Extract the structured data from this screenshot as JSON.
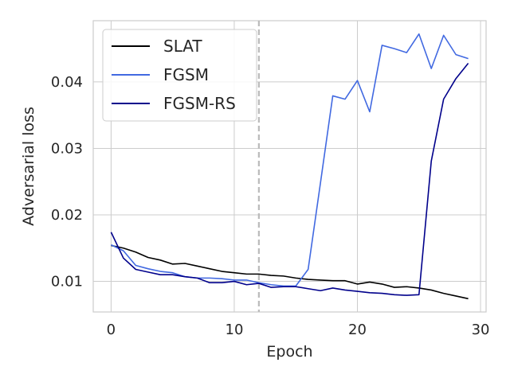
{
  "chart_data": {
    "type": "line",
    "xlabel": "Epoch",
    "ylabel": "Adversarial loss",
    "xlim": [
      -1.45,
      30.45
    ],
    "ylim": [
      0.0054,
      0.0492
    ],
    "x_ticks": [
      0,
      10,
      20,
      30
    ],
    "x_tick_labels": [
      "0",
      "10",
      "20",
      "30"
    ],
    "y_ticks": [
      0.01,
      0.02,
      0.03,
      0.04
    ],
    "y_tick_labels": [
      "0.01",
      "0.02",
      "0.03",
      "0.04"
    ],
    "grid": true,
    "legend_position": "top-left",
    "vline": {
      "x": 12,
      "style": "dashed",
      "color": "#bbbbbb"
    },
    "x": [
      0,
      1,
      2,
      3,
      4,
      5,
      6,
      7,
      8,
      9,
      10,
      11,
      12,
      13,
      14,
      15,
      16,
      17,
      18,
      19,
      20,
      21,
      22,
      23,
      24,
      25,
      26,
      27,
      28,
      29
    ],
    "series": [
      {
        "name": "SLAT",
        "color": "#000000",
        "values": [
          0.0154,
          0.015,
          0.0144,
          0.0136,
          0.0132,
          0.0126,
          0.0127,
          0.0123,
          0.0119,
          0.0115,
          0.0113,
          0.0111,
          0.0111,
          0.0109,
          0.0108,
          0.0105,
          0.0103,
          0.0102,
          0.0101,
          0.0101,
          0.0096,
          0.0099,
          0.0096,
          0.0091,
          0.0092,
          0.009,
          0.0087,
          0.0082,
          0.0078,
          0.0074
        ]
      },
      {
        "name": "FGSM",
        "color": "#4169e1",
        "values": [
          0.0155,
          0.0146,
          0.0124,
          0.0119,
          0.0115,
          0.0113,
          0.0107,
          0.0105,
          0.0105,
          0.0104,
          0.0102,
          0.0102,
          0.0098,
          0.0095,
          0.0093,
          0.0093,
          0.0118,
          0.0248,
          0.0379,
          0.0374,
          0.0402,
          0.0355,
          0.0455,
          0.045,
          0.0444,
          0.0472,
          0.042,
          0.047,
          0.0441,
          0.0435
        ]
      },
      {
        "name": "FGSM-RS",
        "color": "#00008b",
        "values": [
          0.0174,
          0.0135,
          0.0118,
          0.0114,
          0.011,
          0.011,
          0.0107,
          0.0105,
          0.0098,
          0.0098,
          0.01,
          0.0095,
          0.0097,
          0.0091,
          0.0092,
          0.0092,
          0.0089,
          0.0086,
          0.009,
          0.0087,
          0.0085,
          0.0083,
          0.0082,
          0.008,
          0.0079,
          0.008,
          0.0281,
          0.0374,
          0.0405,
          0.0428
        ]
      }
    ]
  }
}
